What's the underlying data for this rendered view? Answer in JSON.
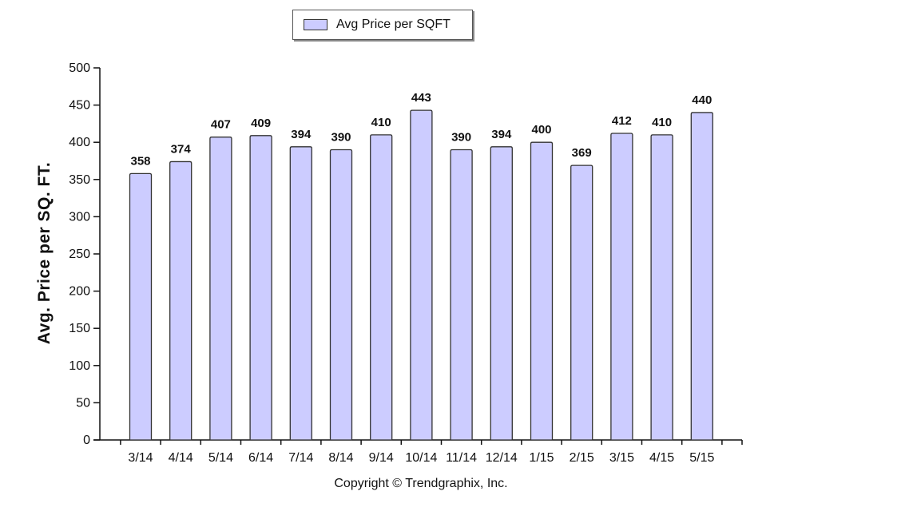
{
  "legend": {
    "series_label": "Avg Price per SQFT"
  },
  "colors": {
    "bar_fill": "#ccccff",
    "bar_stroke": "#333333",
    "axis": "#111111"
  },
  "chart_data": {
    "type": "bar",
    "categories": [
      "3/14",
      "4/14",
      "5/14",
      "6/14",
      "7/14",
      "8/14",
      "9/14",
      "10/14",
      "11/14",
      "12/14",
      "1/15",
      "2/15",
      "3/15",
      "4/15",
      "5/15"
    ],
    "series": [
      {
        "name": "Avg Price per SQFT",
        "values": [
          358,
          374,
          407,
          409,
          394,
          390,
          410,
          443,
          390,
          394,
          400,
          369,
          412,
          410,
          440
        ]
      }
    ],
    "ylabel": "Avg. Price per SQ. FT.",
    "xlabel": "",
    "ylim": [
      0,
      500
    ],
    "yticks": [
      0,
      50,
      100,
      150,
      200,
      250,
      300,
      350,
      400,
      450,
      500
    ],
    "grid": false,
    "legend_position": "top-center",
    "footer": "Copyright © Trendgraphix, Inc."
  }
}
